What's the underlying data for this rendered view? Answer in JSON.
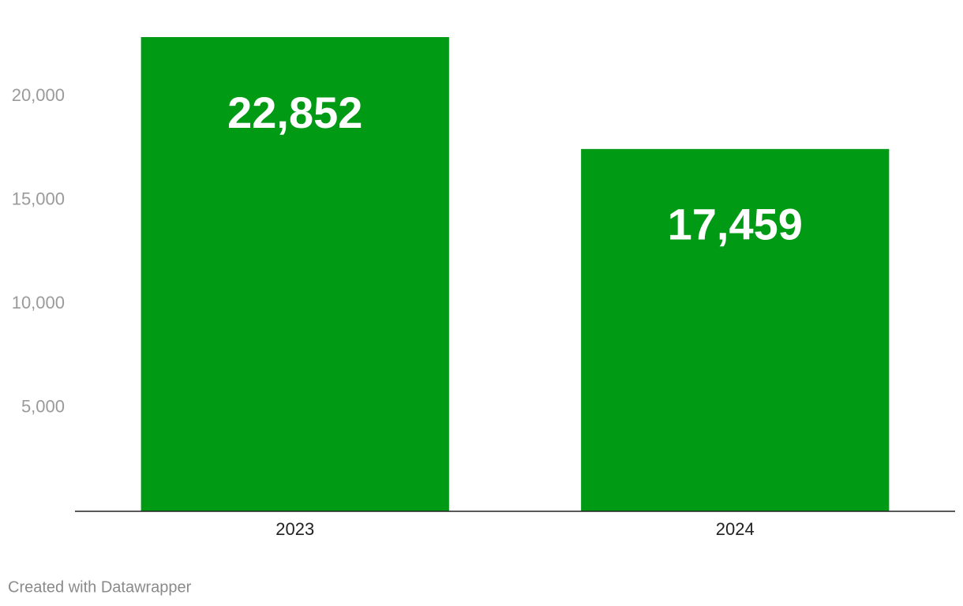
{
  "chart_data": {
    "type": "bar",
    "categories": [
      "2023",
      "2024"
    ],
    "values": [
      22852,
      17459
    ],
    "value_labels": [
      "22,852",
      "17,459"
    ],
    "color": "#009a14",
    "ylim": [
      0,
      22852
    ],
    "yticks": [
      {
        "value": 5000,
        "label": "5,000"
      },
      {
        "value": 10000,
        "label": "10,000"
      },
      {
        "value": 15000,
        "label": "15,000"
      },
      {
        "value": 20000,
        "label": "20,000"
      }
    ],
    "grid": false
  },
  "footer": "Created with Datawrapper"
}
